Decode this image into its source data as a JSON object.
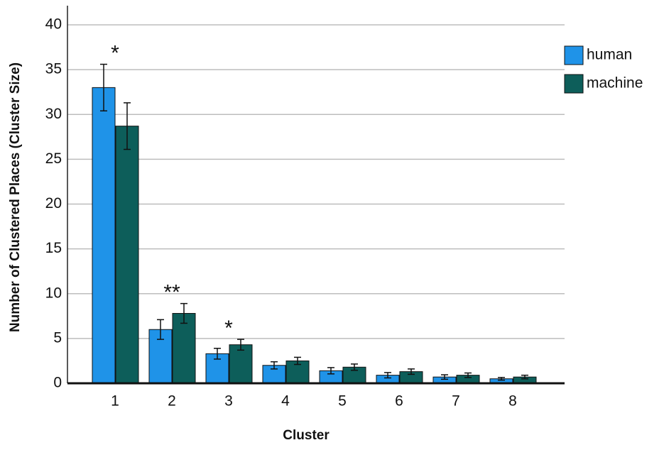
{
  "chart_data": {
    "type": "bar",
    "x_label": "Cluster",
    "y_label": "Number of Clustered Places (Cluster Size)",
    "categories": [
      "1",
      "2",
      "3",
      "4",
      "5",
      "6",
      "7",
      "8"
    ],
    "series": [
      {
        "name": "human",
        "color": "#1f93e8",
        "values": [
          33,
          6,
          3.3,
          2,
          1.4,
          0.9,
          0.7,
          0.5
        ],
        "errors": [
          2.6,
          1.1,
          0.6,
          0.4,
          0.35,
          0.3,
          0.25,
          0.15
        ]
      },
      {
        "name": "machine",
        "color": "#0d5e5a",
        "values": [
          28.7,
          7.8,
          4.3,
          2.5,
          1.8,
          1.3,
          0.9,
          0.7
        ],
        "errors": [
          2.6,
          1.1,
          0.6,
          0.4,
          0.35,
          0.3,
          0.25,
          0.2
        ]
      }
    ],
    "annotations": [
      {
        "text": "*",
        "category": "1"
      },
      {
        "text": "**",
        "category": "2"
      },
      {
        "text": "*",
        "category": "3"
      }
    ],
    "ylim": [
      0,
      40
    ],
    "yticks": [
      0,
      5,
      10,
      15,
      20,
      25,
      30,
      35,
      40
    ],
    "grid": true,
    "legend": "top-right"
  }
}
